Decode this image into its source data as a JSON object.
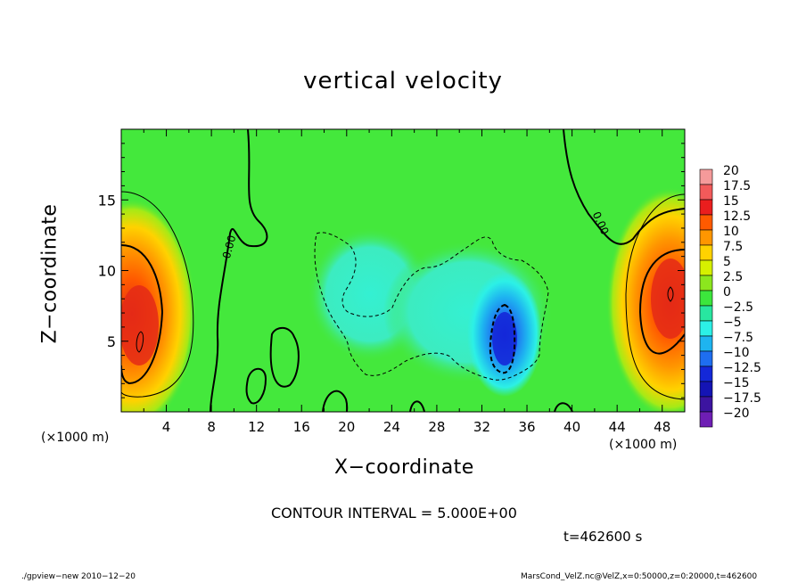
{
  "title": "vertical velocity",
  "xlabel": "X−coordinate",
  "ylabel": "Z−coordinate",
  "x_unit_left": "(×1000 m)",
  "x_unit_right": "(×1000 m)",
  "contour_interval": "CONTOUR INTERVAL = 5.000E+00",
  "time": "t=462600 s",
  "footer_left": "./gpview−new   2010−12−20",
  "footer_right": "MarsCond_VelZ.nc@VelZ,x=0:50000,z=0:20000,t=462600",
  "colors": {
    "background": "#44e83c",
    "cyan": "#34f0d2",
    "blue": "#1e5ef0",
    "orange": "#ff8000",
    "red": "#e42a16"
  },
  "chart_data": {
    "type": "heatmap",
    "title": "vertical velocity",
    "xlabel": "X−coordinate",
    "ylabel": "Z−coordinate",
    "xlim": [
      0,
      50
    ],
    "ylim": [
      0,
      20
    ],
    "x_ticks": [
      "4",
      "8",
      "12",
      "16",
      "20",
      "24",
      "28",
      "32",
      "36",
      "40",
      "44",
      "48"
    ],
    "y_ticks": [
      "5",
      "10",
      "15"
    ],
    "contour_labels": [
      "0.00",
      "0.00"
    ],
    "colorbar": {
      "labels": [
        "20",
        "17.5",
        "15",
        "12.5",
        "10",
        "7.5",
        "5",
        "2.5",
        "0",
        "−2.5",
        "−5",
        "−7.5",
        "−10",
        "−12.5",
        "−15",
        "−17.5",
        "−20"
      ],
      "colors": [
        "#f59a9a",
        "#f25a5a",
        "#ea1e1e",
        "#ff5a00",
        "#ff9600",
        "#ffd200",
        "#d6f000",
        "#8ce61e",
        "#3ce63c",
        "#28e6a0",
        "#2cf0e6",
        "#1eb4f0",
        "#1e6ef0",
        "#1428d8",
        "#1414b4",
        "#3c14a0",
        "#6e1eb4"
      ]
    },
    "features": [
      {
        "kind": "updraft",
        "x": 2,
        "z": 7,
        "peak": 12.5
      },
      {
        "kind": "updraft",
        "x": 48.5,
        "z": 8.5,
        "peak": 12.5
      },
      {
        "kind": "downdraft",
        "x": 33.5,
        "z": 5,
        "peak": -12.5
      }
    ]
  }
}
